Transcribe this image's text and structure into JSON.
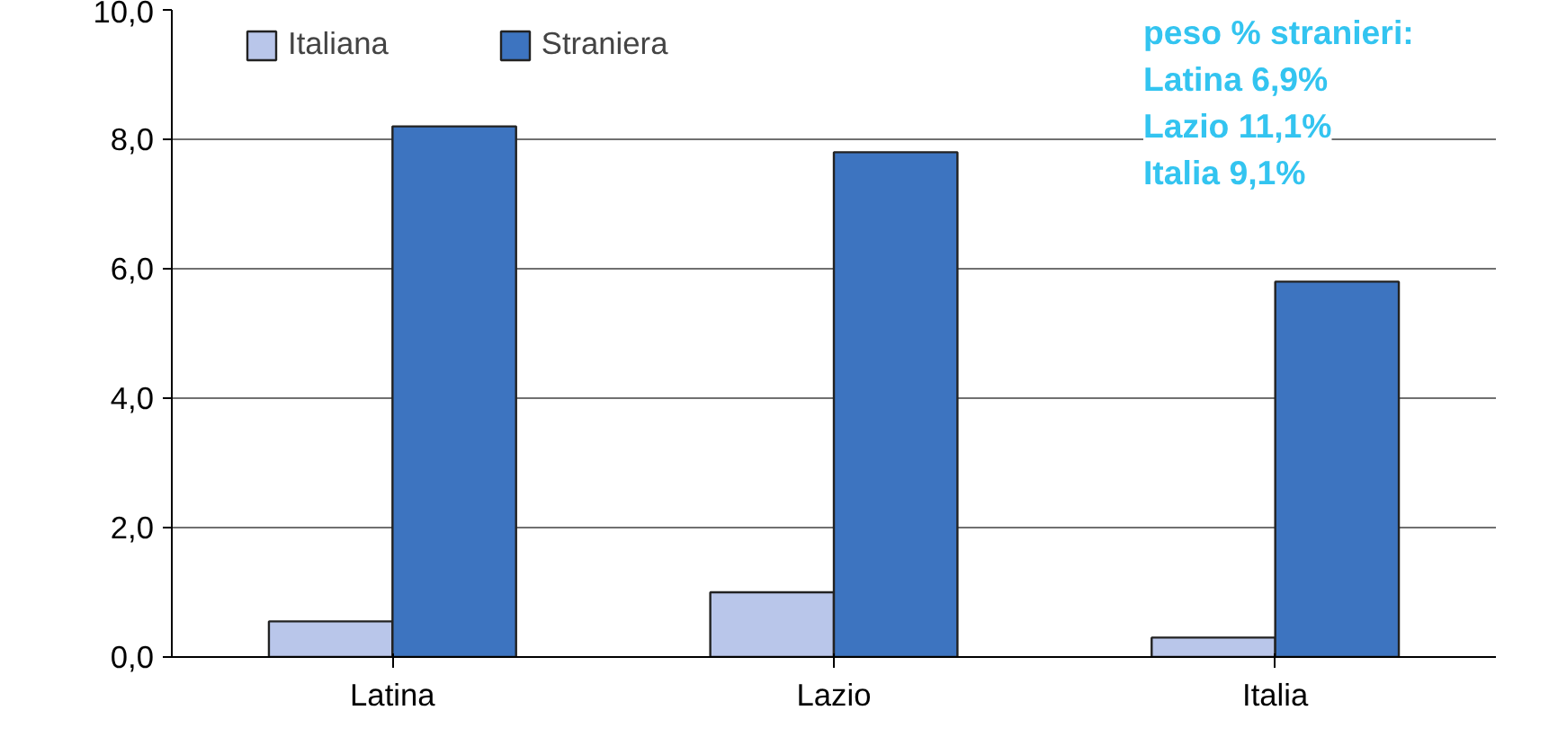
{
  "chart_data": {
    "type": "bar",
    "categories": [
      "Latina",
      "Lazio",
      "Italia"
    ],
    "series": [
      {
        "name": "Italiana",
        "color": "#b9c6ea",
        "values": [
          0.55,
          1.0,
          0.3
        ]
      },
      {
        "name": "Straniera",
        "color": "#3d74c0",
        "values": [
          8.2,
          7.8,
          5.8
        ]
      }
    ],
    "ylim": [
      0,
      10
    ],
    "yticks": [
      {
        "value": 0,
        "label": "0,0"
      },
      {
        "value": 2,
        "label": "2,0"
      },
      {
        "value": 4,
        "label": "4,0"
      },
      {
        "value": 6,
        "label": "6,0"
      },
      {
        "value": 8,
        "label": "8,0"
      },
      {
        "value": 10,
        "label": "10,0"
      }
    ],
    "grid": "y",
    "legend": "top",
    "annotations": [
      "peso % stranieri:",
      "Latina 6,9%",
      "Lazio 11,1%",
      "Italia 9,1%"
    ]
  }
}
